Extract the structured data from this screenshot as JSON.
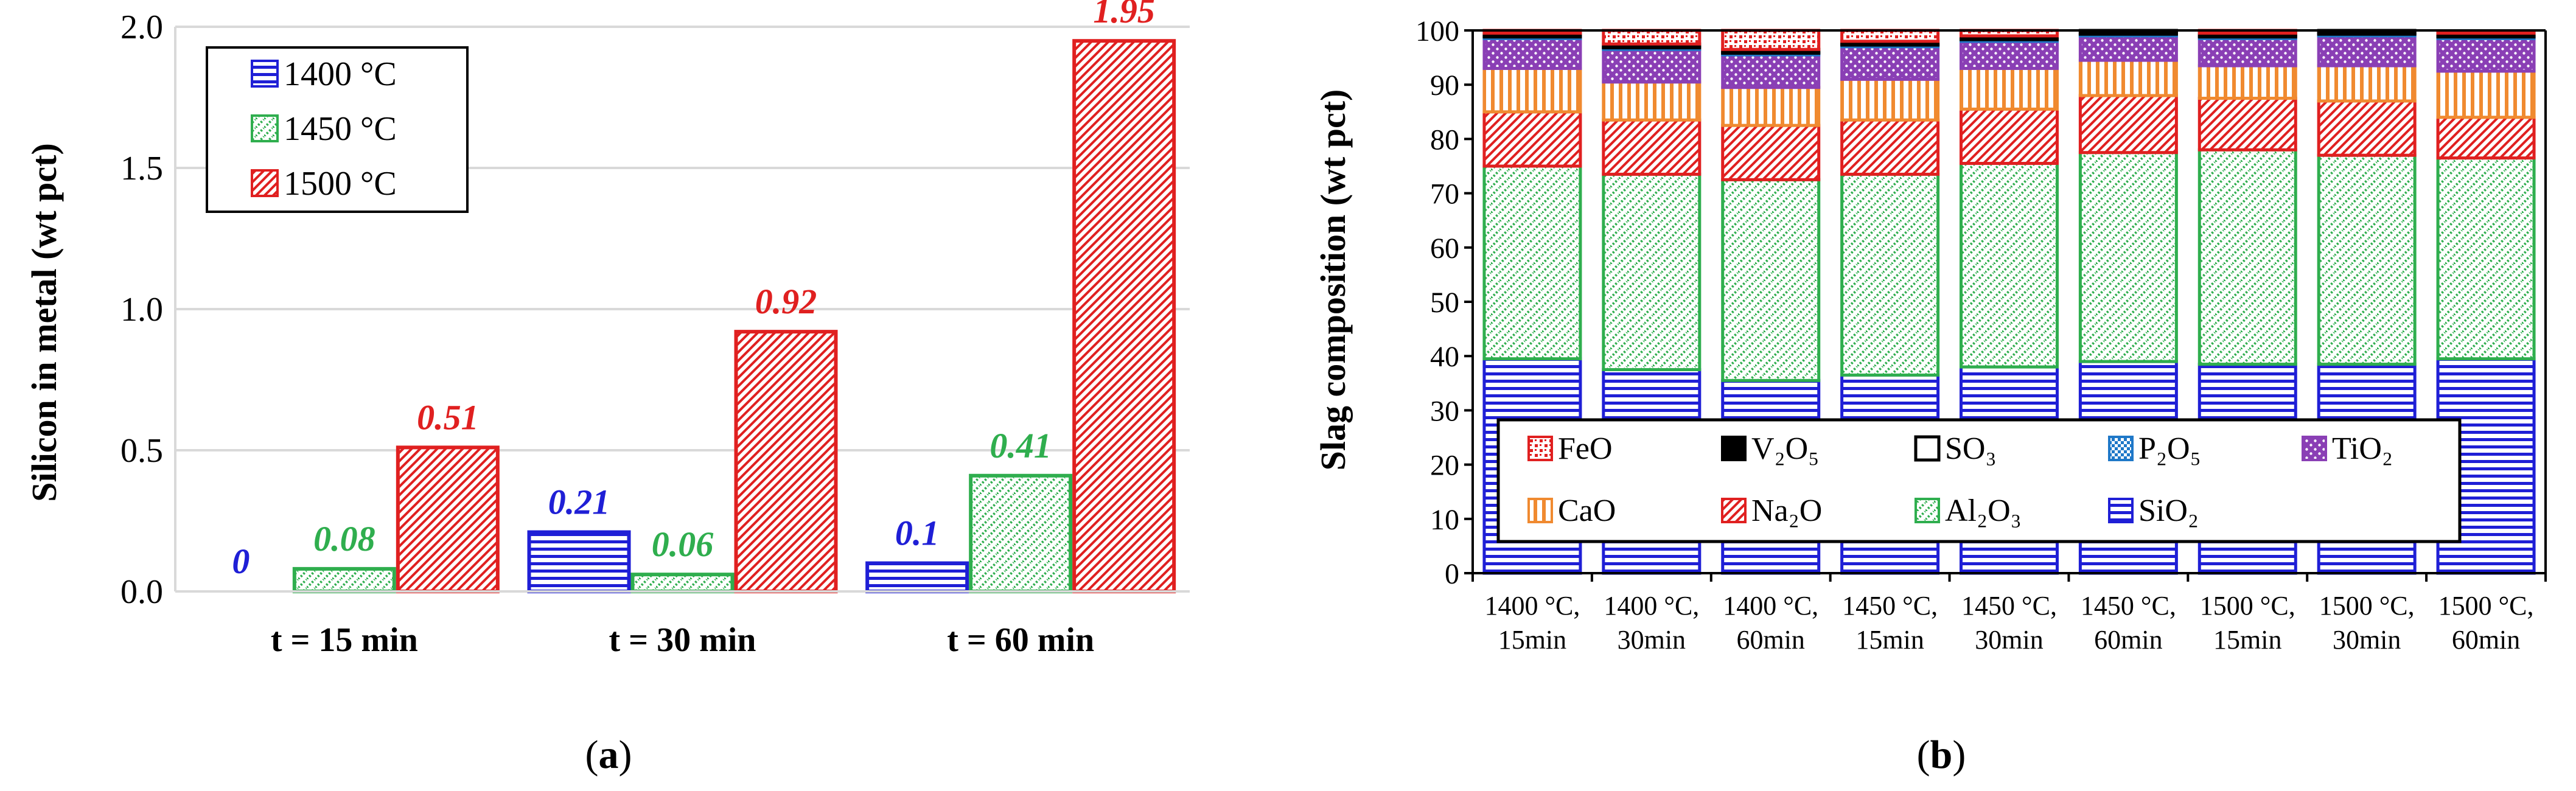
{
  "chart_data": [
    {
      "type": "bar",
      "panel": "a",
      "caption_open": "(",
      "caption_letter": "a",
      "caption_close": ")",
      "ylabel": "Silicon in metal (wt pct)",
      "xlabel": "",
      "ylim": [
        0,
        2.0
      ],
      "yticks": [
        "0.0",
        "0.5",
        "1.0",
        "1.5",
        "2.0"
      ],
      "ytick_values": [
        0,
        0.5,
        1.0,
        1.5,
        2.0
      ],
      "grid": true,
      "legend_position": "top-left",
      "categories": [
        "t = 15 min",
        "t = 30 min",
        "t = 60 min"
      ],
      "series": [
        {
          "name": "1400 °C",
          "values": [
            0,
            0.21,
            0.1
          ],
          "labels": [
            "0",
            "0.21",
            "0.1"
          ],
          "color": "#1f1fd6",
          "pattern": "horizontal"
        },
        {
          "name": "1450 °C",
          "values": [
            0.08,
            0.06,
            0.41
          ],
          "labels": [
            "0.08",
            "0.06",
            "0.41"
          ],
          "color": "#2fae4e",
          "pattern": "dots"
        },
        {
          "name": "1500 °C",
          "values": [
            0.51,
            0.92,
            1.95
          ],
          "labels": [
            "0.51",
            "0.92",
            "1.95"
          ],
          "color": "#e02020",
          "pattern": "diagonal"
        }
      ]
    },
    {
      "type": "stacked-bar",
      "panel": "b",
      "caption_open": "(",
      "caption_letter": "b",
      "caption_close": ")",
      "ylabel": "Slag composition (wt pct)",
      "xlabel": "",
      "ylim": [
        0,
        100
      ],
      "yticks": [
        "0",
        "10",
        "20",
        "30",
        "40",
        "50",
        "60",
        "70",
        "80",
        "90",
        "100"
      ],
      "ytick_values": [
        0,
        10,
        20,
        30,
        40,
        50,
        60,
        70,
        80,
        90,
        100
      ],
      "grid": false,
      "legend_position": "bottom-inside",
      "categories": [
        [
          "1400 °C,",
          "15min"
        ],
        [
          "1400 °C,",
          "30min"
        ],
        [
          "1400 °C,",
          "60min"
        ],
        [
          "1450 °C,",
          "15min"
        ],
        [
          "1450 °C,",
          "30min"
        ],
        [
          "1450 °C,",
          "60min"
        ],
        [
          "1500 °C,",
          "15min"
        ],
        [
          "1500 °C,",
          "30min"
        ],
        [
          "1500 °C,",
          "60min"
        ]
      ],
      "series": [
        {
          "name": "SiO₂",
          "color": "#1f1fd6",
          "pattern": "horizontal",
          "values": [
            39.5,
            37.5,
            35.5,
            36.5,
            38.0,
            39.0,
            38.5,
            38.5,
            39.5
          ]
        },
        {
          "name": "Al₂O₃",
          "color": "#2fae4e",
          "pattern": "dots",
          "values": [
            35.5,
            36.0,
            37.0,
            37.0,
            37.5,
            38.5,
            39.5,
            38.5,
            37.0
          ]
        },
        {
          "name": "Na₂O",
          "color": "#e02020",
          "pattern": "diagonal",
          "values": [
            10.0,
            10.0,
            10.0,
            10.0,
            10.0,
            10.5,
            9.5,
            10.0,
            7.5
          ]
        },
        {
          "name": "CaO",
          "color": "#f08a30",
          "pattern": "vertical",
          "values": [
            8.0,
            7.0,
            7.0,
            7.5,
            7.5,
            6.5,
            6.0,
            6.5,
            8.5
          ]
        },
        {
          "name": "TiO₂",
          "color": "#8a3fb5",
          "pattern": "dense-dots",
          "values": [
            5.5,
            6.0,
            6.0,
            6.0,
            5.0,
            4.5,
            5.0,
            5.5,
            6.0
          ]
        },
        {
          "name": "P₂O₅",
          "color": "#1f78c8",
          "pattern": "checker",
          "values": [
            0.3,
            0.3,
            0.3,
            0.3,
            0.3,
            0.3,
            0.3,
            0.3,
            0.3
          ]
        },
        {
          "name": "SO₃",
          "color": "#000000",
          "pattern": "none",
          "values": [
            0.2,
            0.2,
            0.2,
            0.2,
            0.2,
            0.2,
            0.2,
            0.2,
            0.2
          ]
        },
        {
          "name": "V₂O₅",
          "color": "#000000",
          "pattern": "solid",
          "values": [
            0.5,
            0.5,
            0.5,
            0.5,
            0.5,
            0.5,
            0.5,
            0.5,
            0.5
          ]
        },
        {
          "name": "FeO",
          "color": "#e02020",
          "pattern": "crosses",
          "values": [
            0.5,
            2.5,
            3.5,
            2.0,
            1.0,
            0.0,
            0.5,
            0.0,
            0.3
          ]
        }
      ],
      "legend_order": [
        "FeO",
        "V₂O₅",
        "SO₃",
        "P₂O₅",
        "TiO₂",
        "CaO",
        "Na₂O",
        "Al₂O₃",
        "SiO₂"
      ]
    }
  ]
}
